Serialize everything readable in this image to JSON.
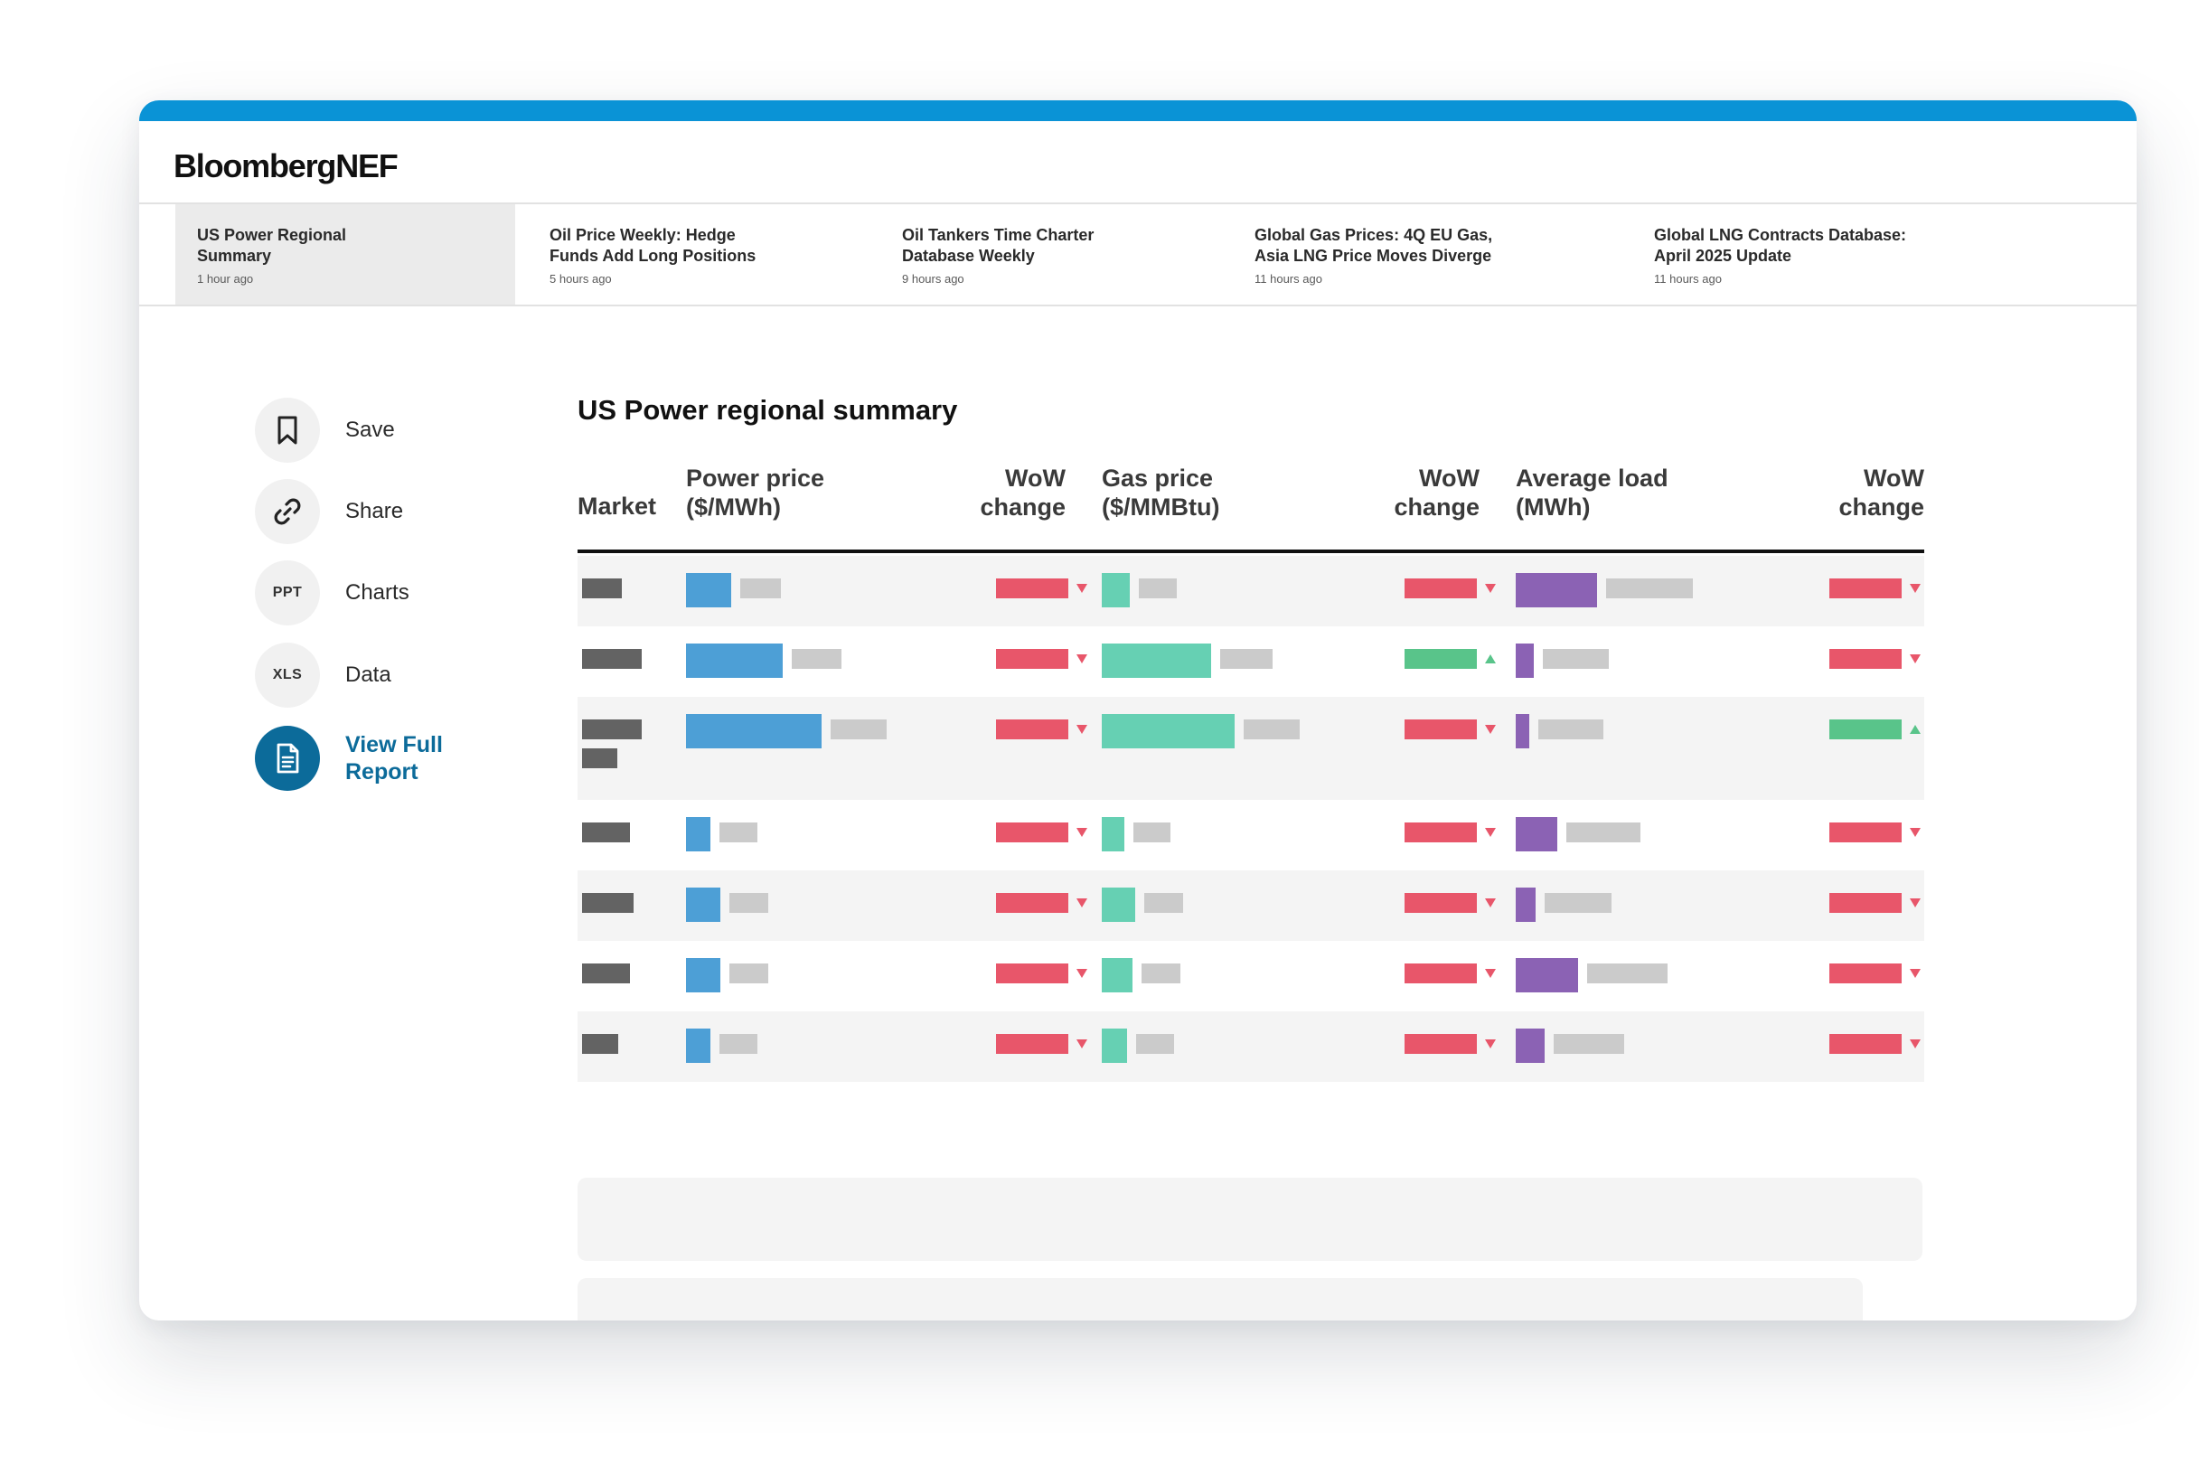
{
  "app": {
    "logo": "BloombergNEF",
    "accent_color": "#0a93d6"
  },
  "tabs": [
    {
      "title": "US Power Regional\nSummary",
      "time": "1 hour ago",
      "active": true
    },
    {
      "title": "Oil Price Weekly: Hedge\nFunds Add Long Positions",
      "time": "5 hours ago",
      "active": false
    },
    {
      "title": "Oil Tankers Time Charter\nDatabase Weekly",
      "time": "9 hours ago",
      "active": false
    },
    {
      "title": "Global Gas Prices: 4Q EU Gas,\nAsia LNG Price Moves Diverge",
      "time": "11 hours ago",
      "active": false
    },
    {
      "title": "Global LNG Contracts Database:\nApril 2025 Update",
      "time": "11 hours ago",
      "active": false
    }
  ],
  "actions": [
    {
      "label": "Save",
      "icon": "bookmark-icon"
    },
    {
      "label": "Share",
      "icon": "link-icon"
    },
    {
      "label": "Charts",
      "icon": "ppt-icon",
      "icon_text": "PPT"
    },
    {
      "label": "Data",
      "icon": "xls-icon",
      "icon_text": "XLS"
    },
    {
      "label": "View Full Report",
      "icon": "document-icon",
      "primary": true
    }
  ],
  "page": {
    "title": "US Power regional summary"
  },
  "table": {
    "headers": {
      "market": "Market",
      "power_price": "Power price\n($/MWh)",
      "power_wow": "WoW\nchange",
      "gas_price": "Gas price\n($/MMBtu)",
      "gas_wow": "WoW\nchange",
      "load": "Average load\n(MWh)",
      "load_wow": "WoW\nchange"
    },
    "colors": {
      "market": "#636363",
      "power": "#4d9fd6",
      "gas": "#66d0b3",
      "load": "#8b62b4",
      "placeholder": "#cbcbcb",
      "down": "#e8566a",
      "up": "#59c48a"
    },
    "rows": [
      {
        "market_bars": [
          0.48
        ],
        "power": 0.33,
        "gas": 0.21,
        "load": 0.64,
        "wow": [
          "down",
          "down",
          "down"
        ]
      },
      {
        "market_bars": [
          0.72
        ],
        "power": 0.71,
        "gas": 0.82,
        "load": 0.14,
        "wow": [
          "down",
          "up",
          "down"
        ]
      },
      {
        "market_bars": [
          0.72,
          0.42
        ],
        "power": 1.0,
        "gas": 1.0,
        "load": 0.11,
        "wow": [
          "down",
          "down",
          "up"
        ]
      },
      {
        "market_bars": [
          0.58
        ],
        "power": 0.18,
        "gas": 0.17,
        "load": 0.33,
        "wow": [
          "down",
          "down",
          "down"
        ]
      },
      {
        "market_bars": [
          0.62
        ],
        "power": 0.25,
        "gas": 0.25,
        "load": 0.16,
        "wow": [
          "down",
          "down",
          "down"
        ]
      },
      {
        "market_bars": [
          0.58
        ],
        "power": 0.25,
        "gas": 0.23,
        "load": 0.49,
        "wow": [
          "down",
          "down",
          "down"
        ]
      },
      {
        "market_bars": [
          0.44
        ],
        "power": 0.18,
        "gas": 0.19,
        "load": 0.23,
        "wow": [
          "down",
          "down",
          "down"
        ]
      }
    ]
  }
}
